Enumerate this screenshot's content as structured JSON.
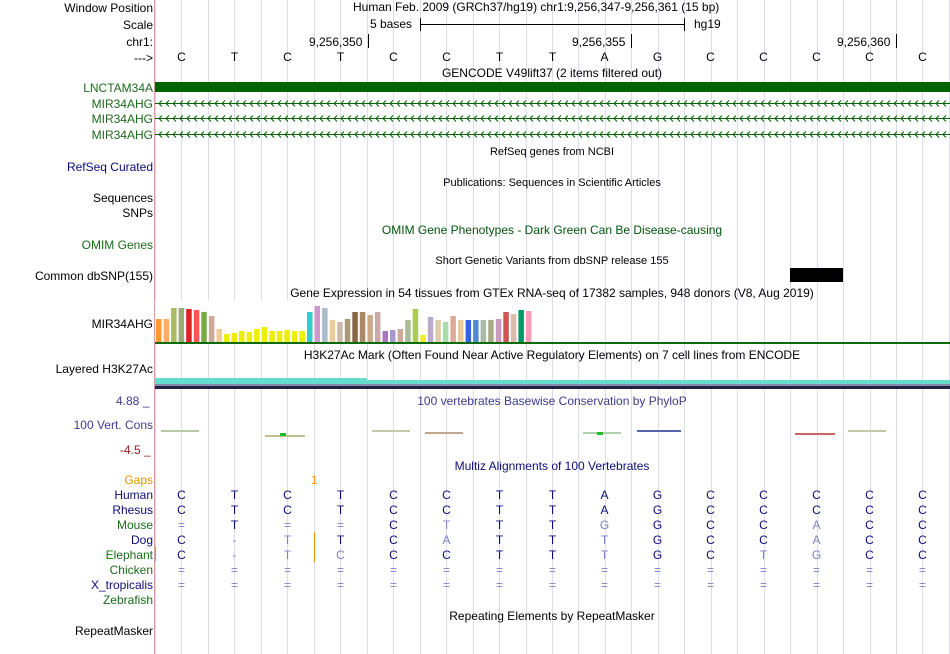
{
  "header": {
    "window_position_label": "Window Position",
    "window_position_value": "Human Feb. 2009 (GRCh37/hg19)   chr1:9,256,347-9,256,361 (15 bp)",
    "scale_label": "Scale",
    "scale_text": "5 bases",
    "assembly": "hg19",
    "chrom_label": "chr1:",
    "positions": [
      "9,256,350",
      "9,256,355",
      "9,256,360"
    ],
    "strand_label": "--->"
  },
  "bases": [
    "C",
    "T",
    "C",
    "T",
    "C",
    "C",
    "T",
    "T",
    "A",
    "G",
    "C",
    "C",
    "C",
    "C",
    "C"
  ],
  "gencode": {
    "title": "GENCODE V49lift37 (2 items filtered out)",
    "items": [
      {
        "label": "LNCTAM34A",
        "type": "block"
      },
      {
        "label": "MIR34AHG",
        "type": "line"
      },
      {
        "label": "MIR34AHG",
        "type": "line"
      },
      {
        "label": "MIR34AHG",
        "type": "line"
      }
    ],
    "color": "#0c6b0c"
  },
  "refseq": {
    "title": "RefSeq genes from NCBI",
    "label": "RefSeq Curated",
    "color": "#0c0c78"
  },
  "publications": {
    "title": "Publications: Sequences in Scientific Articles",
    "label1": "Sequences",
    "label2": "SNPs"
  },
  "omim": {
    "title": "OMIM Gene Phenotypes - Dark Green Can Be Disease-causing",
    "label": "OMIM Genes",
    "color": "#00550b"
  },
  "dbsnp": {
    "title": "Short Genetic Variants from dbSNP release 155",
    "label": "Common dbSNP(155)"
  },
  "gtex": {
    "title": "Gene Expression in 54 tissues from GTEx RNA-seq of 17382 samples, 948 donors (V8, Aug 2019)",
    "label": "MIR34AHG",
    "bars": [
      {
        "v": 0.65,
        "c": "#ff9933"
      },
      {
        "v": 0.65,
        "c": "#ffaa66"
      },
      {
        "v": 0.95,
        "c": "#aabb66"
      },
      {
        "v": 0.95,
        "c": "#99aa77"
      },
      {
        "v": 0.92,
        "c": "#dd2222"
      },
      {
        "v": 0.88,
        "c": "#ff5555"
      },
      {
        "v": 0.82,
        "c": "#77aa44"
      },
      {
        "v": 0.72,
        "c": "#ccaa99"
      },
      {
        "v": 0.35,
        "c": "#eecc99"
      },
      {
        "v": 0.22,
        "c": "#eeee00"
      },
      {
        "v": 0.25,
        "c": "#eeee00"
      },
      {
        "v": 0.3,
        "c": "#eeee00"
      },
      {
        "v": 0.28,
        "c": "#eeee00"
      },
      {
        "v": 0.35,
        "c": "#eeee00"
      },
      {
        "v": 0.42,
        "c": "#eeee00"
      },
      {
        "v": 0.3,
        "c": "#eeee00"
      },
      {
        "v": 0.3,
        "c": "#eeee00"
      },
      {
        "v": 0.32,
        "c": "#eeee00"
      },
      {
        "v": 0.3,
        "c": "#eeee00"
      },
      {
        "v": 0.3,
        "c": "#eeee00"
      },
      {
        "v": 0.82,
        "c": "#33cccc"
      },
      {
        "v": 1.0,
        "c": "#cc99cc"
      },
      {
        "v": 0.95,
        "c": "#aabbcc"
      },
      {
        "v": 0.6,
        "c": "#eecc99"
      },
      {
        "v": 0.55,
        "c": "#ccbbaa"
      },
      {
        "v": 0.65,
        "c": "#aa9977"
      },
      {
        "v": 0.82,
        "c": "#886644"
      },
      {
        "v": 0.82,
        "c": "#aa8866"
      },
      {
        "v": 0.75,
        "c": "#ccaa88"
      },
      {
        "v": 0.82,
        "c": "#ccaaaa"
      },
      {
        "v": 0.3,
        "c": "#aa77bb"
      },
      {
        "v": 0.32,
        "c": "#aa99cc"
      },
      {
        "v": 0.35,
        "c": "#ccaa99"
      },
      {
        "v": 0.6,
        "c": "#aabb99"
      },
      {
        "v": 0.92,
        "c": "#aacc55"
      },
      {
        "v": 0.2,
        "c": "#eeee22"
      },
      {
        "v": 0.7,
        "c": "#bbaacc"
      },
      {
        "v": 0.6,
        "c": "#ddccaa"
      },
      {
        "v": 0.55,
        "c": "#aaddaa"
      },
      {
        "v": 0.72,
        "c": "#ddaa99"
      },
      {
        "v": 0.6,
        "c": "#eecc99"
      },
      {
        "v": 0.62,
        "c": "#3366dd"
      },
      {
        "v": 0.62,
        "c": "#5588cc"
      },
      {
        "v": 0.6,
        "c": "#aabbaa"
      },
      {
        "v": 0.6,
        "c": "#aaaa88"
      },
      {
        "v": 0.65,
        "c": "#cc99bb"
      },
      {
        "v": 0.82,
        "c": "#cc5555"
      },
      {
        "v": 0.78,
        "c": "#ddbbaa"
      },
      {
        "v": 0.9,
        "c": "#009966"
      },
      {
        "v": 0.85,
        "c": "#ff99bb"
      }
    ]
  },
  "h3k27ac": {
    "title": "H3K27Ac Mark (Often Found Near Active Regulatory Elements) on 7 cell lines from ENCODE",
    "label": "Layered H3K27Ac"
  },
  "phylop": {
    "title": "100 vertebrates Basewise Conservation by PhyloP",
    "label": "100 Vert. Cons",
    "max_label": "4.88 _",
    "min_label": "-4.5 _",
    "color": "#3c3c8c"
  },
  "multiz": {
    "title": "Multiz Alignments of 100 Vertebrates",
    "gaps_label": "Gaps",
    "gaps_marker": "1",
    "species": [
      {
        "name": "Human",
        "color": "#0c0c78",
        "bases": [
          "C",
          "T",
          "C",
          "T",
          "C",
          "C",
          "T",
          "T",
          "A",
          "G",
          "C",
          "C",
          "C",
          "C",
          "C"
        ]
      },
      {
        "name": "Rhesus",
        "color": "#0c0c78",
        "bases": [
          "C",
          "T",
          "C",
          "T",
          "C",
          "C",
          "T",
          "T",
          "A",
          "G",
          "C",
          "C",
          "C",
          "C",
          "C"
        ]
      },
      {
        "name": "Mouse",
        "color": "#1a6b1a",
        "bases": [
          "=",
          "T",
          "=",
          "=",
          "C",
          "T",
          "T",
          "T",
          "G",
          "G",
          "C",
          "C",
          "A",
          "C",
          "C"
        ]
      },
      {
        "name": "Dog",
        "color": "#0c0c78",
        "bases": [
          "C",
          "-",
          "T",
          "T",
          "C",
          "A",
          "T",
          "T",
          "T",
          "G",
          "C",
          "C",
          "A",
          "C",
          "C"
        ]
      },
      {
        "name": "Elephant",
        "color": "#1a6b1a",
        "bases": [
          "C",
          "-",
          "T",
          "C",
          "C",
          "C",
          "T",
          "T",
          "T",
          "G",
          "C",
          "T",
          "G",
          "C",
          "C"
        ]
      },
      {
        "name": "Chicken",
        "color": "#1a6b1a",
        "bases": [
          "=",
          "=",
          "=",
          "=",
          "=",
          "=",
          "=",
          "=",
          "=",
          "=",
          "=",
          "=",
          "=",
          "=",
          "="
        ]
      },
      {
        "name": "X_tropicalis",
        "color": "#0c0c78",
        "bases": [
          "=",
          "=",
          "=",
          "=",
          "=",
          "=",
          "=",
          "=",
          "=",
          "=",
          "=",
          "=",
          "=",
          "=",
          "="
        ]
      },
      {
        "name": "Zebrafish",
        "color": "#1a6b1a",
        "bases": []
      }
    ]
  },
  "repeatmasker": {
    "title": "Repeating Elements by RepeatMasker",
    "label": "RepeatMasker"
  },
  "colors": {
    "gencode": "#006400",
    "mismatch": "#8080c0",
    "gaps": "#e69500",
    "h3k27ac": "#66ddcc",
    "phylop_link": "#3c3c8c"
  }
}
